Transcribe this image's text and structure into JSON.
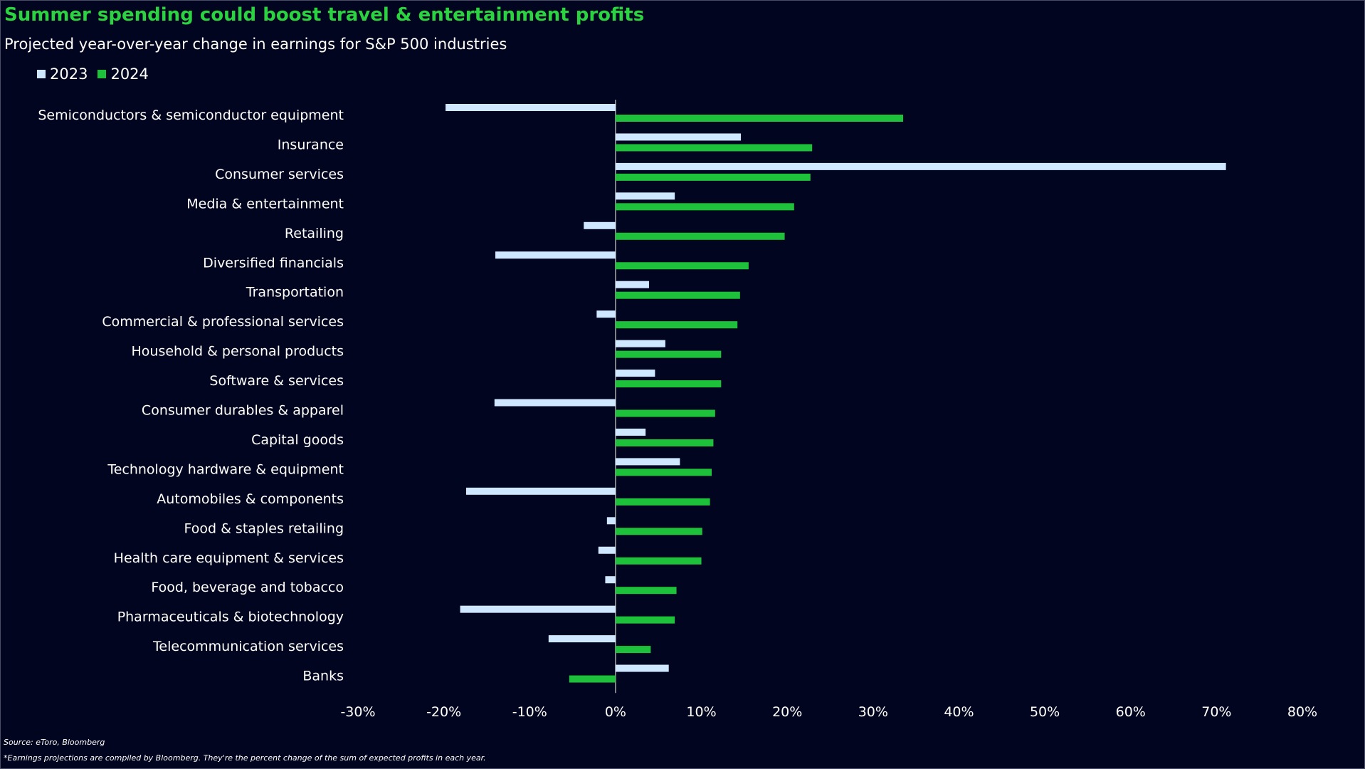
{
  "header": {
    "title": "Summer spending could boost travel & entertainment profits",
    "subtitle": "Projected year-over-year change in earnings for S&P 500 industries"
  },
  "footer": {
    "source": "Source: eToro, Bloomberg",
    "note": "*Earnings projections are compiled by Bloomberg. They're the percent change of the sum of expected profits in each year."
  },
  "colors": {
    "background": "#02051f",
    "series_2023": "#cfe8ff",
    "series_2024": "#1ec23a",
    "title": "#2bd341"
  },
  "chart_data": {
    "type": "bar",
    "orientation": "horizontal",
    "title": "Summer spending could boost travel & entertainment profits",
    "subtitle": "Projected year-over-year change in earnings for S&P 500 industries",
    "xlabel": "",
    "ylabel": "",
    "xlim": [
      -30,
      80
    ],
    "x_ticks": [
      -30,
      -20,
      -10,
      0,
      10,
      20,
      30,
      40,
      50,
      60,
      70,
      80
    ],
    "x_tick_labels": [
      "-30%",
      "-20%",
      "-10%",
      "0%",
      "10%",
      "20%",
      "30%",
      "40%",
      "50%",
      "60%",
      "70%",
      "80%"
    ],
    "grid": false,
    "legend_position": "top-left",
    "categories": [
      "Semiconductors & semiconductor equipment",
      "Insurance",
      "Consumer services",
      "Media & entertainment",
      "Retailing",
      "Diversified financials",
      "Transportation",
      "Commercial & professional services",
      "Household & personal products",
      "Software & services",
      "Consumer durables & apparel",
      "Capital goods",
      "Technology hardware & equipment",
      "Automobiles & components",
      "Food & staples retailing",
      "Health care equipment & services",
      "Food, beverage and tobacco",
      "Pharmaceuticals & biotechnology",
      "Telecommunication services",
      "Banks"
    ],
    "series": [
      {
        "name": "2023",
        "color": "#cfe8ff",
        "values": [
          -19.8,
          14.6,
          71.1,
          6.9,
          -3.7,
          -14.0,
          3.9,
          -2.2,
          5.8,
          4.6,
          -14.1,
          3.5,
          7.5,
          -17.4,
          -1.0,
          -2.0,
          -1.2,
          -18.1,
          -7.8,
          6.2
        ]
      },
      {
        "name": "2024",
        "color": "#1ec23a",
        "values": [
          33.5,
          22.9,
          22.7,
          20.8,
          19.7,
          15.5,
          14.5,
          14.2,
          12.3,
          12.3,
          11.6,
          11.4,
          11.2,
          11.0,
          10.1,
          10.0,
          7.1,
          6.9,
          4.1,
          -5.4
        ]
      }
    ]
  }
}
